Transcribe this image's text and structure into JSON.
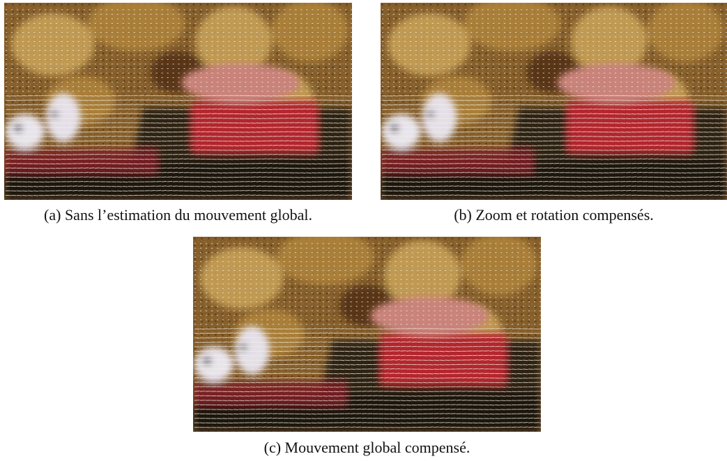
{
  "figure": {
    "panels": [
      {
        "id": "a",
        "caption": "(a) Sans l’estimation du mouvement global.",
        "content": "vector-field-overlay"
      },
      {
        "id": "b",
        "caption": "(b) Zoom et rotation compensés.",
        "content": "vector-field-overlay"
      },
      {
        "id": "c",
        "caption": "(c) Mouvement global compensé.",
        "content": "vector-field-overlay"
      }
    ]
  },
  "colors": {
    "wallpaper_dark": "#4a2813",
    "wallpaper_gold": "#b58a3c",
    "wallpaper_light": "#d4ad5f",
    "object_red": "#b3262e",
    "object_pink": "#c9837a",
    "object_dark": "#1e1410",
    "vector_lines": "#f4f1e6"
  }
}
